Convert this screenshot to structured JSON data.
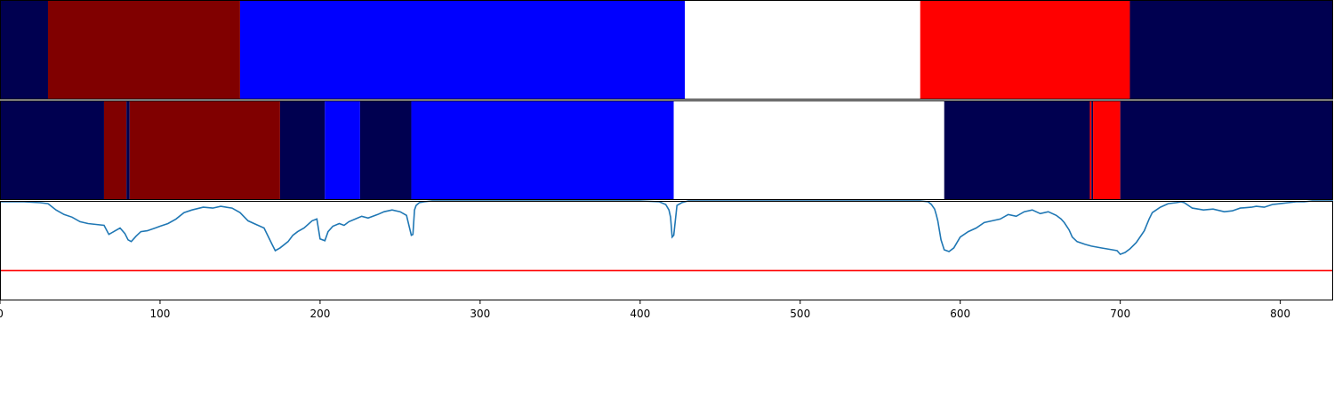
{
  "chart_data": [
    {
      "type": "segmentation",
      "panel": "top",
      "xlim": [
        0,
        833
      ],
      "colors": {
        "background": "#000050",
        "a": "#800000",
        "b": "#0000ff",
        "c": "#ffffff",
        "d": "#ff0000"
      },
      "segments": [
        {
          "x0": 0,
          "x1": 30,
          "color": "#000050"
        },
        {
          "x0": 30,
          "x1": 150,
          "color": "#800000"
        },
        {
          "x0": 150,
          "x1": 428,
          "color": "#0000ff"
        },
        {
          "x0": 428,
          "x1": 575,
          "color": "#ffffff"
        },
        {
          "x0": 575,
          "x1": 706,
          "color": "#ff0000"
        },
        {
          "x0": 706,
          "x1": 833,
          "color": "#000050"
        }
      ]
    },
    {
      "type": "segmentation",
      "panel": "middle",
      "xlim": [
        0,
        833
      ],
      "segments": [
        {
          "x0": 0,
          "x1": 65,
          "color": "#000050"
        },
        {
          "x0": 65,
          "x1": 79,
          "color": "#800000"
        },
        {
          "x0": 79,
          "x1": 81,
          "color": "#000050"
        },
        {
          "x0": 81,
          "x1": 175,
          "color": "#800000"
        },
        {
          "x0": 175,
          "x1": 203,
          "color": "#000050"
        },
        {
          "x0": 203,
          "x1": 225,
          "color": "#0000ff"
        },
        {
          "x0": 225,
          "x1": 257,
          "color": "#000050"
        },
        {
          "x0": 257,
          "x1": 421,
          "color": "#0000ff"
        },
        {
          "x0": 421,
          "x1": 590,
          "color": "#ffffff"
        },
        {
          "x0": 590,
          "x1": 681,
          "color": "#000050"
        },
        {
          "x0": 681,
          "x1": 682,
          "color": "#ff0000"
        },
        {
          "x0": 682,
          "x1": 683,
          "color": "#000050"
        },
        {
          "x0": 683,
          "x1": 700,
          "color": "#ff0000"
        },
        {
          "x0": 700,
          "x1": 833,
          "color": "#000050"
        }
      ]
    },
    {
      "type": "line",
      "panel": "bottom",
      "xlim": [
        0,
        833
      ],
      "ylim": [
        -0.1,
        1.0
      ],
      "xticks": [
        0,
        100,
        200,
        300,
        400,
        500,
        600,
        700,
        800
      ],
      "threshold": {
        "y": 0.23,
        "color": "#ff0000"
      },
      "series": [
        {
          "color": "#1f77b4",
          "x": [
            0,
            15,
            25,
            30,
            35,
            40,
            45,
            50,
            55,
            60,
            65,
            68,
            72,
            75,
            78,
            80,
            82,
            85,
            88,
            92,
            97,
            100,
            105,
            110,
            115,
            120,
            127,
            133,
            138,
            145,
            150,
            155,
            160,
            165,
            170,
            172,
            175,
            180,
            183,
            186,
            190,
            195,
            198,
            200,
            203,
            205,
            208,
            212,
            215,
            218,
            222,
            226,
            230,
            236,
            240,
            245,
            250,
            254,
            257,
            258,
            259,
            260,
            262,
            265,
            270,
            280,
            300,
            350,
            400,
            412,
            416,
            418,
            419,
            420,
            421,
            423,
            426,
            430,
            440,
            500,
            560,
            575,
            580,
            582,
            584,
            585,
            586,
            588,
            590,
            593,
            596,
            600,
            605,
            610,
            615,
            620,
            625,
            630,
            635,
            640,
            645,
            650,
            655,
            660,
            663,
            665,
            668,
            670,
            673,
            678,
            682,
            688,
            695,
            698,
            700,
            703,
            706,
            710,
            715,
            718,
            720,
            725,
            730,
            735,
            738,
            740,
            745,
            752,
            758,
            765,
            770,
            775,
            782,
            785,
            790,
            795,
            800,
            805,
            810,
            815,
            820,
            833
          ],
          "y": [
            0.99,
            0.99,
            0.98,
            0.97,
            0.9,
            0.85,
            0.82,
            0.77,
            0.75,
            0.74,
            0.73,
            0.63,
            0.67,
            0.7,
            0.64,
            0.57,
            0.55,
            0.61,
            0.66,
            0.67,
            0.7,
            0.72,
            0.75,
            0.8,
            0.87,
            0.9,
            0.93,
            0.92,
            0.94,
            0.92,
            0.87,
            0.78,
            0.74,
            0.7,
            0.52,
            0.45,
            0.48,
            0.55,
            0.62,
            0.66,
            0.7,
            0.78,
            0.8,
            0.58,
            0.56,
            0.66,
            0.72,
            0.75,
            0.73,
            0.77,
            0.8,
            0.83,
            0.81,
            0.85,
            0.88,
            0.9,
            0.88,
            0.84,
            0.62,
            0.63,
            0.9,
            0.95,
            0.98,
            0.99,
            1.0,
            1.0,
            1.0,
            1.0,
            1.0,
            0.99,
            0.96,
            0.9,
            0.82,
            0.6,
            0.62,
            0.95,
            0.98,
            1.0,
            1.0,
            1.0,
            1.0,
            1.0,
            0.99,
            0.96,
            0.91,
            0.85,
            0.78,
            0.57,
            0.46,
            0.44,
            0.48,
            0.6,
            0.66,
            0.7,
            0.76,
            0.78,
            0.8,
            0.85,
            0.83,
            0.88,
            0.9,
            0.86,
            0.88,
            0.84,
            0.8,
            0.76,
            0.68,
            0.6,
            0.55,
            0.52,
            0.5,
            0.48,
            0.46,
            0.45,
            0.41,
            0.43,
            0.47,
            0.54,
            0.67,
            0.8,
            0.87,
            0.93,
            0.97,
            0.98,
            0.99,
            0.98,
            0.92,
            0.9,
            0.91,
            0.88,
            0.89,
            0.92,
            0.93,
            0.94,
            0.93,
            0.96,
            0.97,
            0.98,
            0.99,
            0.99,
            1.0,
            1.0
          ]
        }
      ]
    }
  ]
}
